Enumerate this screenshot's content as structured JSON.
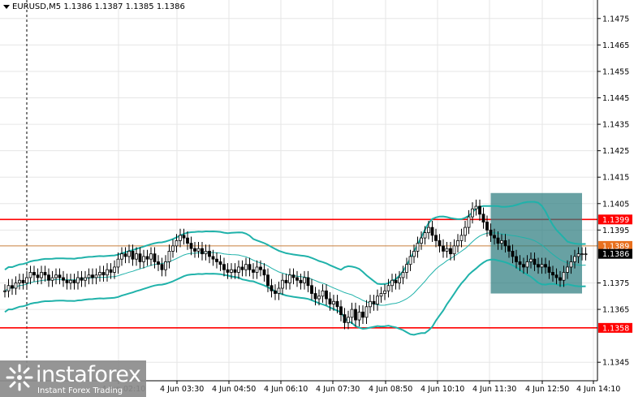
{
  "header": {
    "symbol": "EURUSD,M5",
    "ohlc": "1.1386 1.1387 1.1385 1.1386"
  },
  "watermark": {
    "brand": "instaforex",
    "tagline": "Instant Forex Trading"
  },
  "colors": {
    "bollinger": "#20b2aa",
    "level_line": "#ff0000",
    "bid_line": "#c87f3c",
    "rect_fill": "#2e7d80",
    "candle": "#000000",
    "grid": "#e6e6e6"
  },
  "chart_data": {
    "type": "candlestick",
    "title": "",
    "y_range": [
      1.134,
      1.148
    ],
    "y_ticks": [
      "1.1475",
      "1.1465",
      "1.1455",
      "1.1445",
      "1.1435",
      "1.1425",
      "1.1415",
      "1.1405",
      "1.1395",
      "1.1375",
      "1.1365",
      "1.1345"
    ],
    "x_ticks": [
      "4 Jun 02:10",
      "4 Jun 03:30",
      "4 Jun 04:50",
      "4 Jun 06:10",
      "4 Jun 07:30",
      "4 Jun 08:50",
      "4 Jun 10:10",
      "4 Jun 11:30",
      "4 Jun 12:50",
      "4 Jun 14:10"
    ],
    "levels": [
      {
        "label": "1.1399",
        "value": 1.1399,
        "kind": "resistance"
      },
      {
        "label": "1.1358",
        "value": 1.1358,
        "kind": "support"
      }
    ],
    "price_tags": [
      {
        "label": "1.1389",
        "value": 1.1389,
        "kind": "orange"
      },
      {
        "label": "1.1386",
        "value": 1.1386,
        "kind": "current"
      }
    ],
    "rectangle": {
      "x_start": 133,
      "x_end": 158,
      "y_top": 1.1409,
      "y_bottom": 1.1371
    },
    "close": [
      1.1372,
      1.1374,
      1.1373,
      1.1375,
      1.1376,
      1.1375,
      1.1377,
      1.1379,
      1.1378,
      1.1377,
      1.1379,
      1.1378,
      1.1376,
      1.1377,
      1.1378,
      1.1377,
      1.1376,
      1.1375,
      1.1376,
      1.1375,
      1.1377,
      1.1376,
      1.1377,
      1.1378,
      1.1377,
      1.1378,
      1.1379,
      1.1378,
      1.138,
      1.1379,
      1.1381,
      1.1384,
      1.1386,
      1.1385,
      1.1387,
      1.1384,
      1.1386,
      1.1383,
      1.1385,
      1.1384,
      1.1386,
      1.1383,
      1.1382,
      1.138,
      1.1383,
      1.1387,
      1.1389,
      1.1391,
      1.1393,
      1.1392,
      1.139,
      1.1388,
      1.1387,
      1.1388,
      1.1386,
      1.1387,
      1.1385,
      1.1384,
      1.1383,
      1.1382,
      1.138,
      1.1379,
      1.138,
      1.1379,
      1.1381,
      1.138,
      1.1382,
      1.138,
      1.1379,
      1.1381,
      1.138,
      1.1378,
      1.1374,
      1.1372,
      1.1371,
      1.1373,
      1.1376,
      1.1375,
      1.1378,
      1.1377,
      1.1376,
      1.1375,
      1.1377,
      1.1374,
      1.1371,
      1.1369,
      1.137,
      1.1372,
      1.1369,
      1.1367,
      1.1368,
      1.1366,
      1.1363,
      1.136,
      1.1362,
      1.1365,
      1.1361,
      1.1364,
      1.1362,
      1.1366,
      1.1368,
      1.1367,
      1.137,
      1.1371,
      1.1372,
      1.1374,
      1.1376,
      1.1375,
      1.1377,
      1.1379,
      1.1382,
      1.1385,
      1.1387,
      1.139,
      1.1392,
      1.1394,
      1.1396,
      1.1393,
      1.1391,
      1.1389,
      1.1387,
      1.1388,
      1.1386,
      1.1389,
      1.1391,
      1.1393,
      1.1396,
      1.14,
      1.1403,
      1.1404,
      1.1401,
      1.1398,
      1.1395,
      1.1393,
      1.1392,
      1.139,
      1.1391,
      1.1389,
      1.1387,
      1.1385,
      1.1383,
      1.1382,
      1.1381,
      1.1383,
      1.1384,
      1.1382,
      1.1381,
      1.1382,
      1.1381,
      1.1379,
      1.1378,
      1.1377,
      1.1376,
      1.1379,
      1.1381,
      1.1383,
      1.1385,
      1.1386,
      1.1386,
      1.1386
    ]
  }
}
